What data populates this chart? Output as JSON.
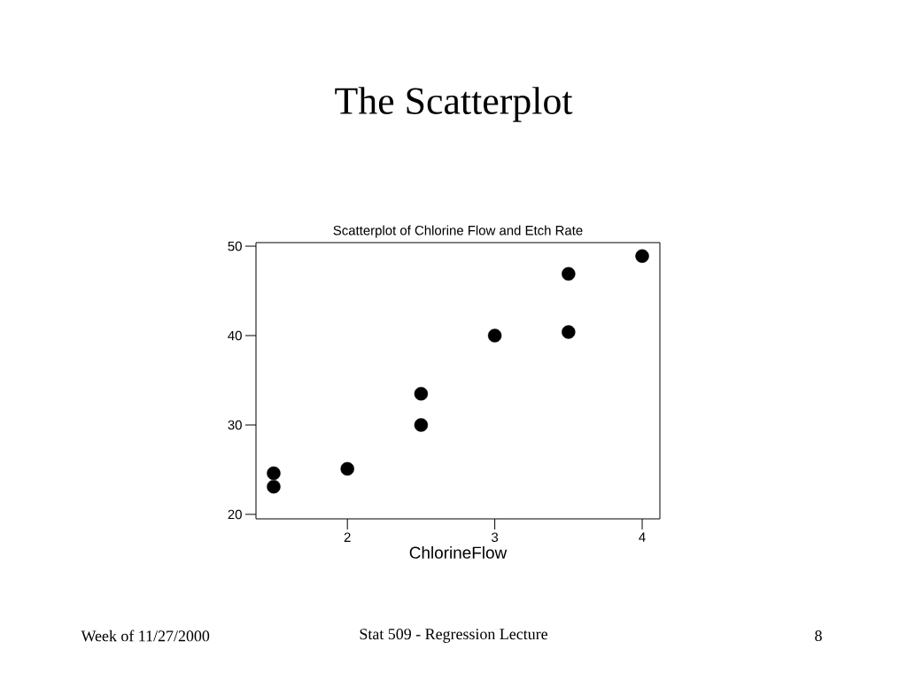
{
  "chart_data": {
    "type": "scatter",
    "title": "The Scatterplot",
    "subtitle": "Scatterplot of Chlorine Flow and Etch Rate",
    "xlabel": "ChlorineFlow",
    "x": [
      1.5,
      1.5,
      2,
      2.5,
      2.5,
      3,
      3.5,
      3.5,
      4
    ],
    "values": [
      24.6,
      23.1,
      25.1,
      33.5,
      30,
      40,
      46.9,
      40.4,
      48.9
    ],
    "color": "#000000",
    "marker": "circle",
    "xlim": [
      1.38,
      4.12
    ],
    "ylim": [
      19.5,
      50.4
    ],
    "xticks": [
      2,
      3,
      4
    ],
    "yticks": [
      20,
      30,
      40,
      50
    ],
    "annotations": [
      "Week of 11/27/2000",
      "Stat 509 - Regression Lecture",
      "8"
    ]
  }
}
